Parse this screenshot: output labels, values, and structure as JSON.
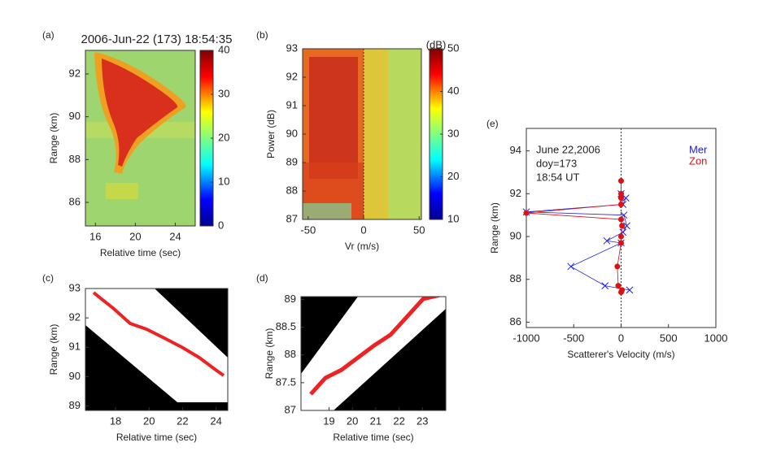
{
  "chart_data": [
    {
      "type": "heatmap",
      "label": "(a)",
      "title": "2006-Jun-22 (173) 18:54:35",
      "xlabel": "Relative time (sec)",
      "ylabel": "Range (km)",
      "xlim": [
        15,
        26
      ],
      "xticks": [
        16,
        20,
        24
      ],
      "ylim": [
        84.9,
        93.1
      ],
      "yticks": [
        86,
        88,
        90,
        92
      ],
      "colorbar": {
        "lim": [
          0,
          40
        ],
        "ticks": [
          0,
          10,
          20,
          30,
          40
        ]
      }
    },
    {
      "type": "heatmap",
      "label": "(b)",
      "xlabel": "Vr (m/s)",
      "ylabel": "Power (dB)",
      "xlim": [
        -55,
        52
      ],
      "xticks": [
        -50,
        0,
        50
      ],
      "ylim": [
        87,
        93
      ],
      "yticks": [
        87,
        88,
        89,
        90,
        91,
        92,
        93
      ],
      "colorbar": {
        "label": "(dB)",
        "lim": [
          10,
          50
        ],
        "ticks": [
          10,
          20,
          30,
          40,
          50
        ]
      }
    },
    {
      "type": "heatmap",
      "label": "(c)",
      "xlabel": "Relative time (sec)",
      "ylabel": "Range (km)",
      "xlim": [
        16.2,
        24.7
      ],
      "xticks": [
        18,
        20,
        22,
        24
      ],
      "ylim": [
        88.85,
        93
      ],
      "yticks": [
        89,
        90,
        91,
        92,
        93
      ]
    },
    {
      "type": "heatmap",
      "label": "(d)",
      "xlabel": "Relative time (sec)",
      "ylabel": "Range (km)",
      "xlim": [
        17.8,
        24
      ],
      "xticks": [
        19,
        20,
        21,
        22,
        23
      ],
      "ylim": [
        87,
        89.05
      ],
      "yticks": [
        87,
        87.5,
        88,
        88.5,
        89
      ]
    },
    {
      "type": "line",
      "label": "(e)",
      "xlabel": "Scatterer's Velocity (m/s)",
      "ylabel": "Range (km)",
      "annotation": [
        "June 22,2006",
        "doy=173",
        "18:54 UT"
      ],
      "xlim": [
        -1000,
        1000
      ],
      "xticks": [
        -1000,
        -500,
        0,
        500,
        1000
      ],
      "ylim": [
        85.75,
        95.05
      ],
      "yticks": [
        86,
        88,
        90,
        92,
        94
      ],
      "series": [
        {
          "name": "Mer",
          "color": "#2222dd",
          "marker": "x",
          "x": [
            0,
            50,
            20,
            -1000,
            30,
            60,
            20,
            -150,
            0,
            -530,
            -170,
            90
          ],
          "values": [
            92.0,
            91.8,
            91.5,
            91.15,
            91.0,
            90.5,
            90.2,
            89.8,
            89.7,
            88.6,
            87.7,
            87.5
          ]
        },
        {
          "name": "Zon",
          "color": "#dd1111",
          "marker": "o",
          "x": [
            0,
            0,
            0,
            0,
            -1000,
            0,
            10,
            0,
            0,
            -40,
            -30,
            10,
            0
          ],
          "values": [
            92.6,
            92.0,
            91.8,
            91.5,
            91.1,
            90.8,
            90.5,
            90.0,
            89.7,
            88.6,
            87.7,
            87.5,
            87.4
          ]
        }
      ]
    }
  ]
}
